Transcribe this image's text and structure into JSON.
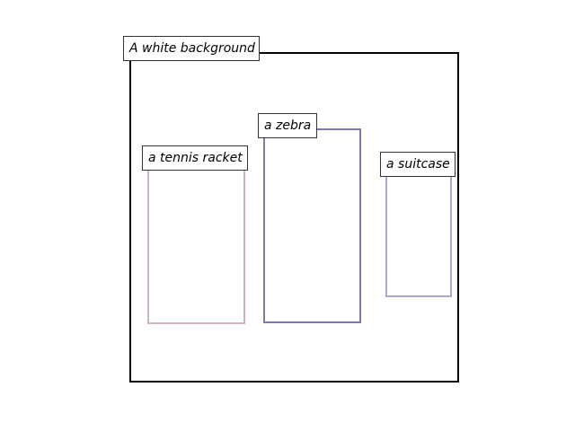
{
  "regions": [
    {
      "label": "A white background",
      "color": "#000000"
    },
    {
      "label": "a tennis racket",
      "color": "#d4b5b5"
    },
    {
      "label": "a zebra",
      "color": "#8378ad"
    },
    {
      "label": "a suitcase",
      "color": "#afa5d0"
    }
  ]
}
